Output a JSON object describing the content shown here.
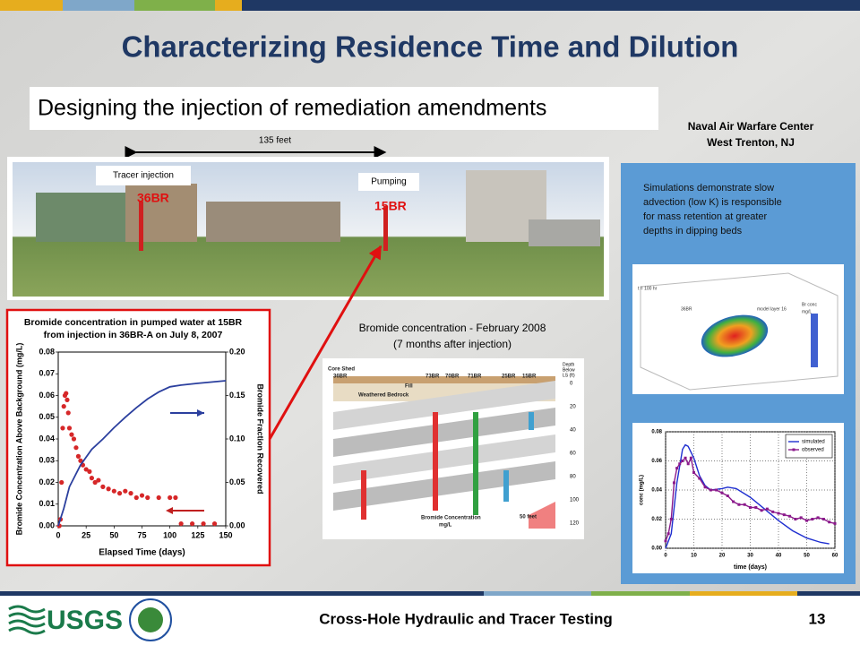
{
  "title": "Characterizing Residence Time and Dilution",
  "subtitle": "Designing the injection of remediation amendments",
  "site": [
    "Naval Air Warfare Center",
    "West Trenton, NJ"
  ],
  "photo": {
    "distance": "135 feet",
    "injection_label": "Tracer injection",
    "pumping_label": "Pumping",
    "wells": [
      "36BR",
      "15BR"
    ]
  },
  "cross_section": {
    "caption": [
      "Bromide concentration - February 2008",
      "(7 months after injection)"
    ],
    "labels": [
      "Core Shed",
      "36BR",
      "73BR",
      "70BR",
      "71BR",
      "25BR",
      "15BR",
      "Fill",
      "Weathered Bedrock",
      "Bromide Concentration",
      "mg/L",
      "50 feet"
    ],
    "depth_title": [
      "Depth",
      "Below",
      "LS (ft)"
    ],
    "depth_ticks": [
      0,
      20,
      40,
      60,
      80,
      100,
      120
    ]
  },
  "simulation": {
    "note": [
      "Simulations demonstrate slow",
      "advection (low K) is responsible",
      "for mass retention at greater",
      "depths in dipping beds"
    ],
    "labels": [
      "t = 100 hr",
      "36BR",
      "model layer 16",
      "Br conc",
      "mg/L"
    ]
  },
  "footer": {
    "logo": "USGS",
    "text": "Cross-Hole Hydraulic and Tracer Testing",
    "page": 13
  },
  "chart_data": [
    {
      "type": "line",
      "title": [
        "Bromide concentration in pumped water at 15BR",
        "from injection in 36BR-A on July 8, 2007"
      ],
      "x_label": "Elapsed Time (days)",
      "y_label": "Bromide Concentration Above Background (mg/L)",
      "y2_label": "Bromide Fraction Recovered",
      "xlim": [
        0,
        150
      ],
      "xticks": [
        0,
        25,
        50,
        75,
        100,
        125,
        150
      ],
      "ylim": [
        0,
        0.08
      ],
      "yticks": [
        {
          "value": 0,
          "label": "0.00"
        },
        0.01,
        0.02,
        0.03,
        0.04,
        0.05,
        0.06,
        0.07,
        0.08
      ],
      "y2lim": [
        0,
        0.2
      ],
      "y2ticks": [
        {
          "value": 0,
          "label": "0.00"
        },
        0.05,
        {
          "value": 0.1,
          "label": "0.10"
        },
        0.15,
        {
          "value": 0.2,
          "label": "0.20"
        }
      ],
      "grid": false,
      "series": [
        {
          "color": "#d62728",
          "style": "points",
          "x": [
            1,
            2,
            3,
            4,
            5,
            6,
            7,
            8,
            9,
            10,
            12,
            14,
            16,
            18,
            20,
            22,
            25,
            28,
            30,
            33,
            36,
            40,
            45,
            50,
            55,
            60,
            65,
            70,
            75,
            80,
            90,
            100,
            105,
            110,
            120,
            130,
            140
          ],
          "values": [
            0,
            0.003,
            0.02,
            0.045,
            0.055,
            0.06,
            0.061,
            0.058,
            0.052,
            0.045,
            0.042,
            0.04,
            0.036,
            0.032,
            0.03,
            0.028,
            0.026,
            0.025,
            0.022,
            0.02,
            0.021,
            0.018,
            0.017,
            0.016,
            0.015,
            0.016,
            0.015,
            0.013,
            0.014,
            0.013,
            0.013,
            0.013,
            0.013,
            0.001,
            0.001,
            0.001,
            0.001
          ]
        },
        {
          "color": "#2b3f9e",
          "style": "line",
          "axis": "y2",
          "x": [
            0,
            5,
            10,
            20,
            30,
            40,
            50,
            60,
            70,
            80,
            90,
            100,
            110,
            125,
            150
          ],
          "values": [
            0,
            0.02,
            0.045,
            0.07,
            0.088,
            0.1,
            0.113,
            0.125,
            0.136,
            0.146,
            0.154,
            0.16,
            0.162,
            0.164,
            0.167
          ]
        }
      ]
    },
    {
      "type": "line",
      "x_label": "time (days)",
      "y_label": "conc (mg/L)",
      "xlim": [
        0,
        60
      ],
      "xticks": [
        0,
        10,
        20,
        30,
        40,
        50,
        60
      ],
      "ylim": [
        0,
        0.08
      ],
      "yticks": [
        {
          "value": 0,
          "label": "0.00"
        },
        0.02,
        0.04,
        0.06,
        0.08
      ],
      "grid": true,
      "legend": "upper right",
      "series": [
        {
          "name": "simulated",
          "color": "#1f2fd0",
          "style": "line",
          "x": [
            0,
            2,
            4,
            6,
            7,
            8,
            10,
            12,
            14,
            16,
            20,
            22,
            25,
            30,
            35,
            40,
            45,
            50,
            55,
            58
          ],
          "values": [
            0,
            0.01,
            0.045,
            0.068,
            0.071,
            0.07,
            0.062,
            0.05,
            0.043,
            0.04,
            0.041,
            0.042,
            0.041,
            0.035,
            0.027,
            0.019,
            0.012,
            0.007,
            0.004,
            0.003
          ]
        },
        {
          "name": "observed",
          "color": "#8b1a8b",
          "style": "line-points",
          "x": [
            0,
            1,
            2,
            3,
            4,
            5,
            6,
            7,
            8,
            9,
            10,
            12,
            14,
            16,
            18,
            20,
            22,
            24,
            26,
            28,
            30,
            32,
            34,
            36,
            38,
            40,
            42,
            44,
            46,
            48,
            50,
            52,
            54,
            56,
            58,
            60
          ],
          "values": [
            0.005,
            0.01,
            0.02,
            0.045,
            0.055,
            0.058,
            0.06,
            0.062,
            0.058,
            0.062,
            0.052,
            0.048,
            0.042,
            0.04,
            0.04,
            0.038,
            0.036,
            0.032,
            0.03,
            0.03,
            0.028,
            0.028,
            0.026,
            0.027,
            0.025,
            0.024,
            0.023,
            0.022,
            0.02,
            0.021,
            0.019,
            0.02,
            0.021,
            0.02,
            0.018,
            0.017
          ]
        }
      ]
    }
  ]
}
